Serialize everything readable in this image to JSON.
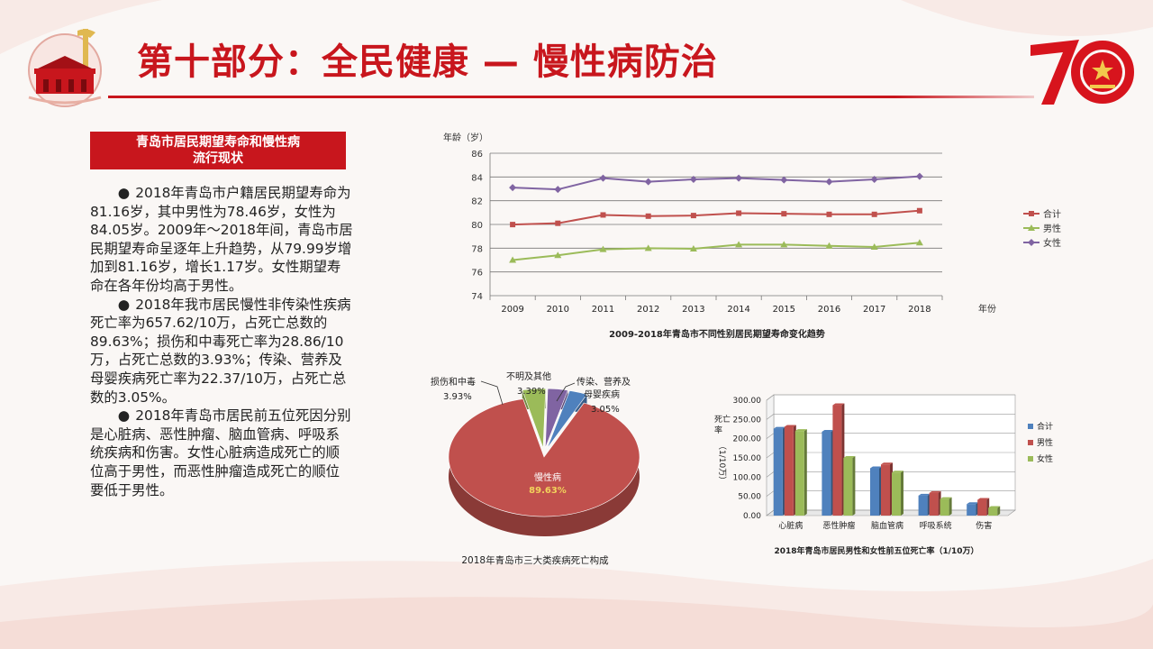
{
  "title": "第十部分：全民健康 — 慢性病防治",
  "side_box_title": [
    "青岛市居民期望寿命和慢性病",
    "流行现状"
  ],
  "paragraphs": [
    "2018年青岛市户籍居民期望寿命为81.16岁，其中男性为78.46岁，女性为84.05岁。2009年～2018年间，青岛市居民期望寿命呈逐年上升趋势，从79.99岁增加到81.16岁，增长1.17岁。女性期望寿命在各年份均高于男性。",
    "2018年我市居民慢性非传染性疾病死亡率为657.62/10万，占死亡总数的89.63%；损伤和中毒死亡率为28.86/10万，占死亡总数的3.93%；传染、营养及母婴疾病死亡率为22.37/10万，占死亡总数的3.05%。",
    "2018年青岛市居民前五位死因分别是心脏病、恶性肿瘤、脑血管病、呼吸系统疾病和伤害。女性心脏病造成死亡的顺位高于男性，而恶性肿瘤造成死亡的顺位要低于男性。"
  ],
  "bullet": "●",
  "colors": {
    "brand_red": "#c8161d",
    "total": "#c0504d",
    "male": "#9bbb59",
    "female": "#8064a2",
    "bar_total": "#4f81bd",
    "bar_male": "#c0504d",
    "bar_female": "#9bbb59"
  },
  "chart_data": [
    {
      "type": "line",
      "title": "2009-2018年青岛市不同性别居民期望寿命变化趋势",
      "ylabel": "年龄（岁）",
      "xlabel": "年份",
      "x": [
        "2009",
        "2010",
        "2011",
        "2012",
        "2013",
        "2014",
        "2015",
        "2016",
        "2017",
        "2018"
      ],
      "ylim": [
        74,
        86
      ],
      "yticks": [
        74,
        76,
        78,
        80,
        82,
        84,
        86
      ],
      "grid": true,
      "legend": "right",
      "series": [
        {
          "name": "合计",
          "key": "total",
          "values": [
            79.99,
            80.1,
            80.8,
            80.7,
            80.75,
            80.95,
            80.9,
            80.85,
            80.85,
            81.16
          ]
        },
        {
          "name": "男性",
          "key": "male",
          "values": [
            77.0,
            77.4,
            77.9,
            78.0,
            77.95,
            78.3,
            78.3,
            78.2,
            78.1,
            78.46
          ]
        },
        {
          "name": "女性",
          "key": "female",
          "values": [
            83.1,
            82.95,
            83.9,
            83.6,
            83.8,
            83.9,
            83.75,
            83.6,
            83.8,
            84.05
          ]
        }
      ]
    },
    {
      "type": "pie",
      "title": "2018年青岛市三大类疾病死亡构成",
      "slices": [
        {
          "label": "慢性病",
          "value": 89.63,
          "display": "89.63%",
          "color": "#c0504d"
        },
        {
          "label": "损伤和中毒",
          "value": 3.93,
          "display": "3.93%",
          "color": "#9bbb59"
        },
        {
          "label": "不明及其他",
          "value": 3.39,
          "display": "3.39%",
          "color": "#8064a2"
        },
        {
          "label": "传染、营养及母婴疾病",
          "label_lines": [
            "传染、营养及",
            "母婴疾病"
          ],
          "value": 3.05,
          "display": "3.05%",
          "color": "#4f81bd"
        }
      ]
    },
    {
      "type": "bar",
      "title": "2018年青岛市居民男性和女性前五位死亡率（1/10万）",
      "ylabel_lines": [
        "死亡率",
        "（1/10万）"
      ],
      "categories": [
        "心脏病",
        "恶性肿瘤",
        "脑血管病",
        "呼吸系统",
        "伤害"
      ],
      "ylim": [
        0,
        300
      ],
      "yticks": [
        "0.00",
        "50.00",
        "100.00",
        "150.00",
        "200.00",
        "250.00",
        "300.00"
      ],
      "legend": "right",
      "series": [
        {
          "name": "合计",
          "key": "bar_total",
          "values": [
            226,
            218,
            123,
            52,
            30
          ]
        },
        {
          "name": "男性",
          "key": "bar_male",
          "values": [
            231,
            287,
            133,
            59,
            41
          ]
        },
        {
          "name": "女性",
          "key": "bar_female",
          "values": [
            220,
            150,
            112,
            43,
            20
          ]
        }
      ]
    }
  ]
}
